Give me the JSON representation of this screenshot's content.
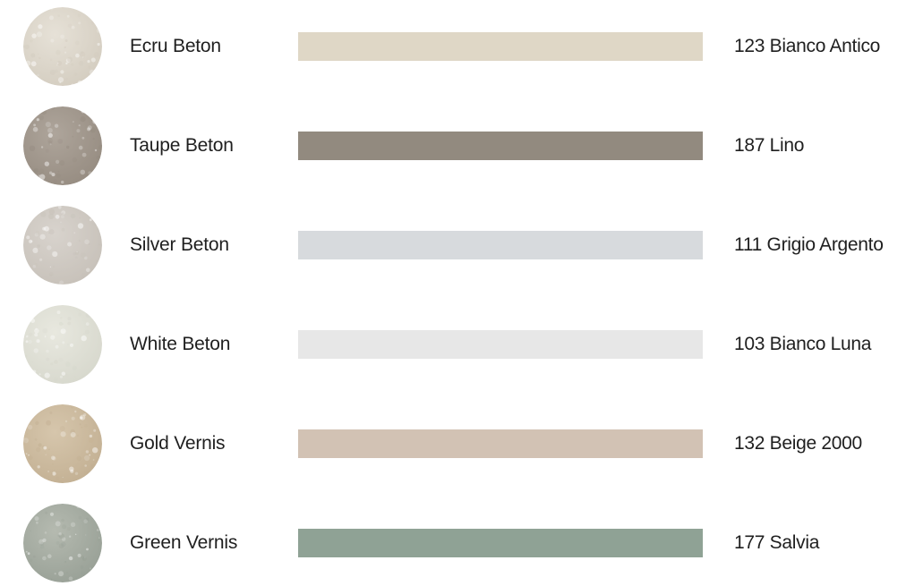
{
  "rows": [
    {
      "name": "Ecru Beton",
      "code": "123 Bianco Antico",
      "swatch_base": "#e6e1d7",
      "swatch_speckle": "#d3ccbf",
      "bar_color": "#dfd7c6"
    },
    {
      "name": "Taupe Beton",
      "code": "187 Lino",
      "swatch_base": "#aea59b",
      "swatch_speckle": "#958b80",
      "bar_color": "#928a7f"
    },
    {
      "name": "Silver Beton",
      "code": "111 Grigio Argento",
      "swatch_base": "#d8d3cd",
      "swatch_speckle": "#c6c0b8",
      "bar_color": "#d7dadd"
    },
    {
      "name": "White Beton",
      "code": "103 Bianco Luna",
      "swatch_base": "#e8e8df",
      "swatch_speckle": "#d6d7cc",
      "bar_color": "#e7e7e7"
    },
    {
      "name": "Gold Vernis",
      "code": "132 Beige 2000",
      "swatch_base": "#d6c6ac",
      "swatch_speckle": "#c2af92",
      "bar_color": "#d2c2b4"
    },
    {
      "name": "Green Vernis",
      "code": "177 Salvia",
      "swatch_base": "#b5bab0",
      "swatch_speckle": "#979f95",
      "bar_color": "#8fa295"
    }
  ]
}
